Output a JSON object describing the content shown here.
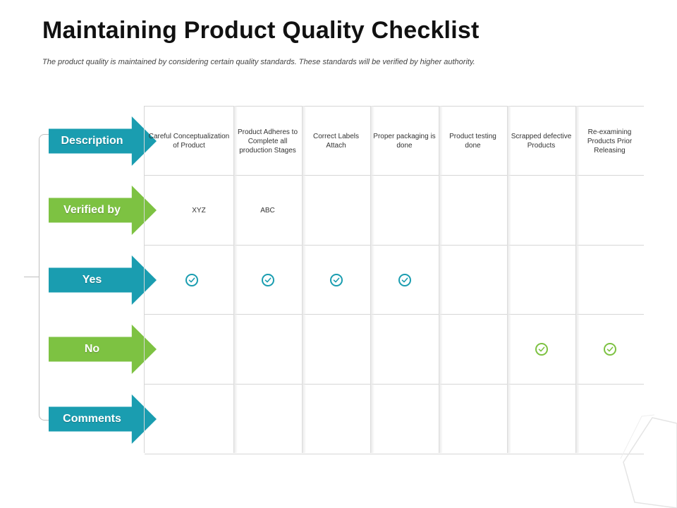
{
  "title": "Maintaining Product Quality Checklist",
  "subtitle": "The product quality is maintained by considering certain quality standards. These standards will be verified by higher authority.",
  "rows": [
    {
      "label": "Description",
      "color": "#1a9db0"
    },
    {
      "label": "Verified by",
      "color": "#7dc242"
    },
    {
      "label": "Yes",
      "color": "#1a9db0"
    },
    {
      "label": "No",
      "color": "#7dc242"
    },
    {
      "label": "Comments",
      "color": "#1a9db0"
    }
  ],
  "columns": [
    "Careful Conceptualization of Product",
    "Product Adheres to Complete all production Stages",
    "Correct Labels Attach",
    "Proper packaging is done",
    "Product testing done",
    "Scrapped defective Products",
    "Re-examining Products Prior Releasing"
  ],
  "verified_by": [
    "XYZ",
    "ABC",
    "",
    "",
    "",
    "",
    ""
  ],
  "yes": [
    true,
    true,
    true,
    true,
    false,
    false,
    false
  ],
  "no": [
    false,
    false,
    false,
    false,
    false,
    true,
    true
  ],
  "comments": [
    "",
    "",
    "",
    "",
    "",
    "",
    ""
  ],
  "colors": {
    "teal": "#1a9db0",
    "green": "#7dc242"
  },
  "icons": {
    "check": "check-circle-icon"
  }
}
